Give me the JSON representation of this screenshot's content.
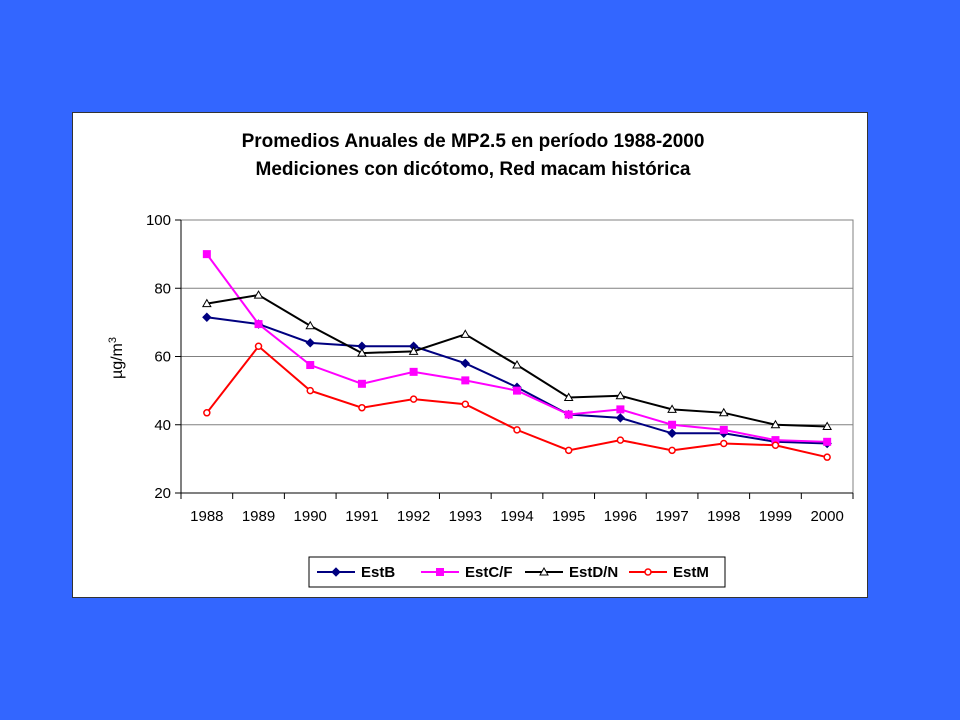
{
  "chart_data": {
    "type": "line",
    "title": [
      "Promedios Anuales de MP2.5 en período 1988-2000",
      "Mediciones con dicótomo, Red macam histórica"
    ],
    "ylabel": "µg/m",
    "ylabel_sup": "3",
    "xlabel": "",
    "categories": [
      "1988",
      "1989",
      "1990",
      "1991",
      "1992",
      "1993",
      "1994",
      "1995",
      "1996",
      "1997",
      "1998",
      "1999",
      "2000"
    ],
    "ylim": [
      20,
      100
    ],
    "yticks": [
      20,
      40,
      60,
      80,
      100
    ],
    "grid": "horizontal",
    "legend_position": "bottom",
    "series": [
      {
        "name": "EstB",
        "color": "#000080",
        "marker": "diamond",
        "values": [
          71.5,
          69.5,
          64,
          63,
          63,
          58,
          51,
          43,
          42,
          37.5,
          37.5,
          35,
          34.5
        ]
      },
      {
        "name": "EstC/F",
        "color": "#FF00FF",
        "marker": "square",
        "values": [
          90,
          69.5,
          57.5,
          52,
          55.5,
          53,
          50,
          43,
          44.5,
          40,
          38.5,
          35.5,
          35
        ]
      },
      {
        "name": "EstD/N",
        "color": "#000000",
        "marker": "triangle",
        "values": [
          75.5,
          78,
          69,
          61,
          61.5,
          66.5,
          57.5,
          48,
          48.5,
          44.5,
          43.5,
          40,
          39.5
        ]
      },
      {
        "name": "EstM",
        "color": "#FF0000",
        "marker": "circle",
        "values": [
          43.5,
          63,
          50,
          45,
          47.5,
          46,
          38.5,
          32.5,
          35.5,
          32.5,
          34.5,
          34,
          30.5
        ]
      }
    ]
  }
}
